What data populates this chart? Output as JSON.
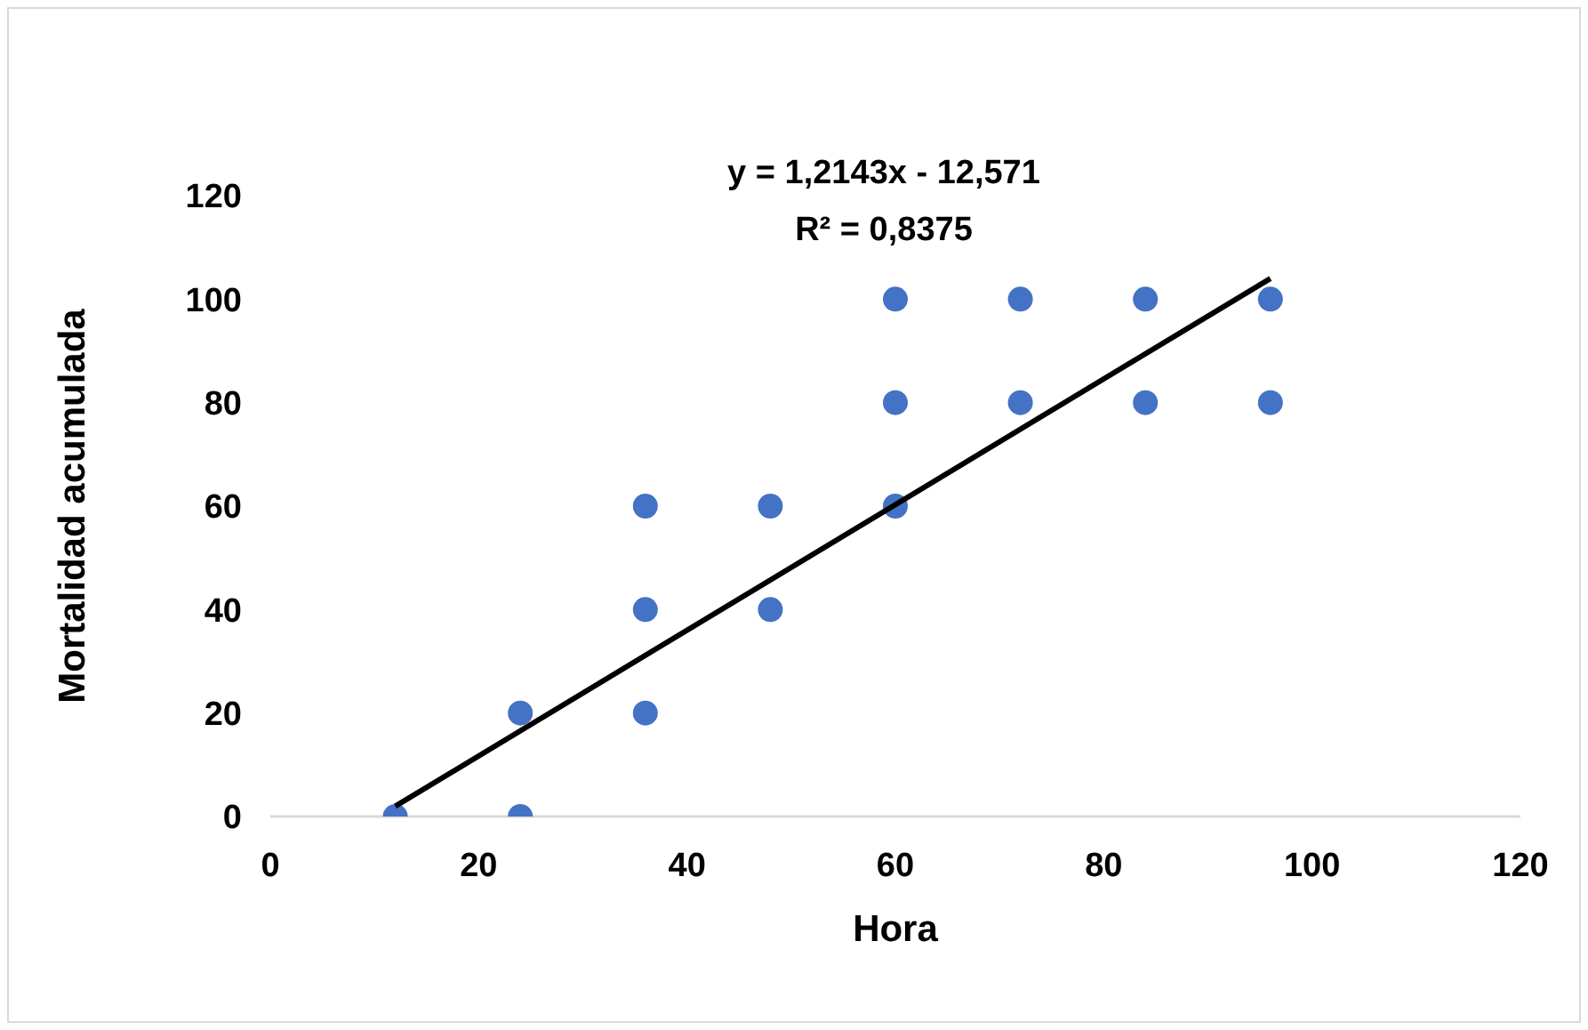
{
  "chart_data": {
    "type": "scatter",
    "xlabel": "Hora",
    "ylabel": "Mortalidad acumulada",
    "annotations": [
      "y = 1,2143x - 12,571",
      "R² = 0,8375"
    ],
    "xlim": [
      0,
      120
    ],
    "xticks": [
      0,
      20,
      40,
      60,
      80,
      100,
      120
    ],
    "ylim": [
      0,
      120
    ],
    "yticks": [
      0,
      20,
      40,
      60,
      80,
      100,
      120
    ],
    "grid": false,
    "legend": false,
    "marker": "circle",
    "series": [
      {
        "color": "#4472c4",
        "x": [
          12,
          24,
          24,
          36,
          36,
          36,
          48,
          48,
          60,
          60,
          60,
          72,
          72,
          84,
          84,
          96,
          96
        ],
        "values": [
          0,
          20,
          0,
          60,
          40,
          20,
          60,
          40,
          100,
          80,
          60,
          100,
          80,
          100,
          80,
          100,
          80
        ]
      },
      {
        "type": "line",
        "color": "#000000",
        "line_style": "solid",
        "marker": "none",
        "x": [
          12,
          96
        ],
        "values": [
          2,
          104
        ]
      }
    ]
  }
}
